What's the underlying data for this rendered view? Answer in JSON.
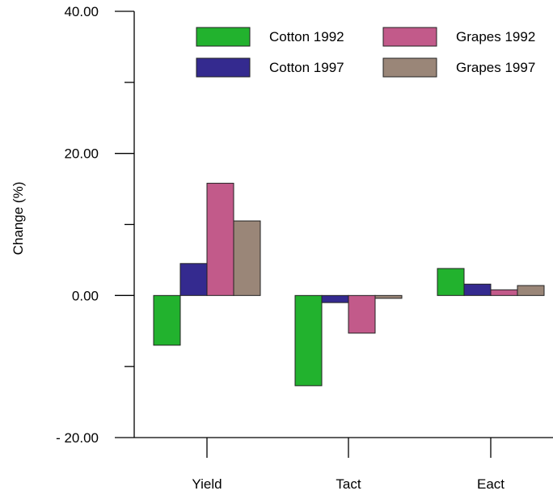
{
  "chart_data": {
    "type": "bar",
    "title": "",
    "xlabel": "",
    "ylabel": "Change (%)",
    "ylim": [
      -20,
      40
    ],
    "y_ticks": [
      {
        "value": 40,
        "label": "40.00"
      },
      {
        "value": 20,
        "label": "20.00"
      },
      {
        "value": 0,
        "label": "0.00"
      },
      {
        "value": -20,
        "label": "- 20.00"
      }
    ],
    "y_minor_ticks": [
      30,
      10,
      -10
    ],
    "grid": false,
    "legend_position": "top-right",
    "categories": [
      "Yield",
      "Tact",
      "Eact"
    ],
    "series": [
      {
        "name": "Cotton 1992",
        "color": "#22b22e",
        "values": [
          -7.0,
          -12.7,
          3.8
        ]
      },
      {
        "name": "Cotton 1997",
        "color": "#342a8f",
        "values": [
          4.5,
          -1.0,
          1.6
        ]
      },
      {
        "name": "Grapes 1992",
        "color": "#c25a8a",
        "values": [
          15.8,
          -5.3,
          0.8
        ]
      },
      {
        "name": "Grapes 1997",
        "color": "#9a8678",
        "values": [
          10.5,
          -0.4,
          1.4
        ]
      }
    ]
  }
}
